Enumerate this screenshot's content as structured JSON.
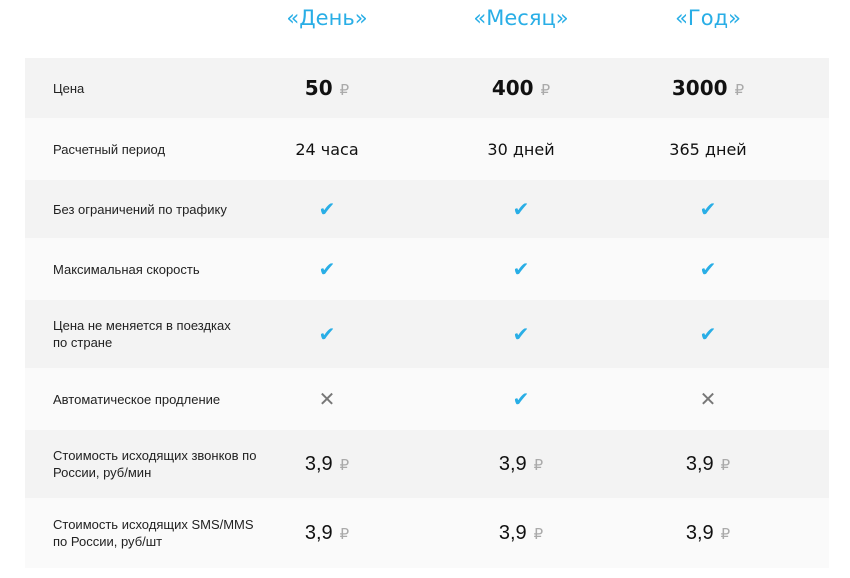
{
  "plans": [
    "«День»",
    "«Месяц»",
    "«Год»"
  ],
  "currency": "₽",
  "accent": "#29aee6",
  "rows": [
    {
      "label": "Цена",
      "type": "big",
      "values": [
        "50",
        "400",
        "3000"
      ]
    },
    {
      "label": "Расчетный период",
      "type": "txt",
      "values": [
        "24 часа",
        "30 дней",
        "365 дней"
      ]
    },
    {
      "label": "Без ограничений по трафику",
      "type": "icon",
      "values": [
        "check",
        "check",
        "check"
      ]
    },
    {
      "label": "Максимальная скорость",
      "type": "icon",
      "values": [
        "check",
        "check",
        "check"
      ]
    },
    {
      "label": "Цена не меняется в поездках по стране",
      "type": "icon",
      "values": [
        "check",
        "check",
        "check"
      ]
    },
    {
      "label": "Автоматическое продление",
      "type": "icon",
      "values": [
        "cross",
        "check",
        "cross"
      ]
    },
    {
      "label": "Стоимость исходящих звонков по России, руб/мин",
      "type": "dec",
      "values": [
        "3,9",
        "3,9",
        "3,9"
      ]
    },
    {
      "label": "Стоимость исходящих SMS/MMS по России, руб/шт",
      "type": "dec",
      "values": [
        "3,9",
        "3,9",
        "3,9"
      ]
    }
  ]
}
